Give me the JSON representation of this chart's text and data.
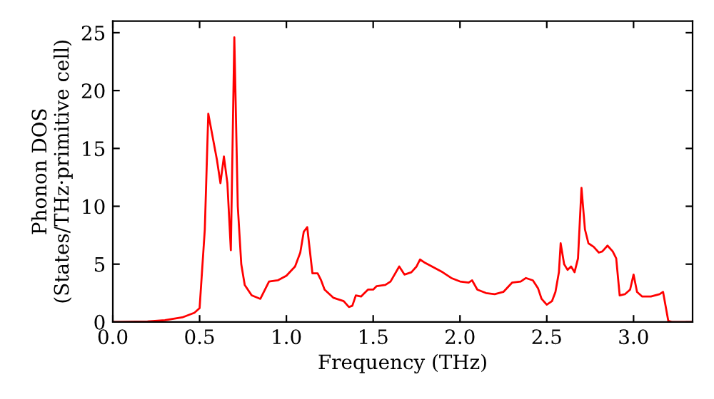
{
  "chart_data": {
    "type": "line",
    "xlabel": "Frequency (THz)",
    "ylabel": "Phonon DOS\n(States/THz·primitive cell)",
    "xlim": [
      0,
      3.34
    ],
    "ylim": [
      0,
      26
    ],
    "xticks": [
      {
        "value": 0,
        "label": "0.0"
      },
      {
        "value": 0.5,
        "label": "0.5"
      },
      {
        "value": 1,
        "label": "1.0"
      },
      {
        "value": 1.5,
        "label": "1.5"
      },
      {
        "value": 2,
        "label": "2.0"
      },
      {
        "value": 2.5,
        "label": "2.5"
      },
      {
        "value": 3,
        "label": "3.0"
      }
    ],
    "yticks": [
      0,
      5,
      10,
      15,
      20,
      25
    ],
    "grid": false,
    "marker": "none",
    "line_style": "solid",
    "series": [
      {
        "color": "#ff0000",
        "x": [
          0,
          0.2,
          0.3,
          0.4,
          0.47,
          0.5,
          0.53,
          0.55,
          0.6,
          0.62,
          0.64,
          0.66,
          0.68,
          0.7,
          0.72,
          0.74,
          0.76,
          0.8,
          0.85,
          0.9,
          0.95,
          1.0,
          1.05,
          1.08,
          1.1,
          1.12,
          1.15,
          1.18,
          1.2,
          1.22,
          1.27,
          1.33,
          1.36,
          1.38,
          1.4,
          1.43,
          1.47,
          1.5,
          1.52,
          1.57,
          1.6,
          1.65,
          1.68,
          1.72,
          1.75,
          1.77,
          1.8,
          1.85,
          1.9,
          1.95,
          2.0,
          2.05,
          2.07,
          2.1,
          2.15,
          2.2,
          2.25,
          2.3,
          2.35,
          2.38,
          2.42,
          2.45,
          2.47,
          2.5,
          2.53,
          2.55,
          2.57,
          2.58,
          2.6,
          2.62,
          2.64,
          2.66,
          2.68,
          2.7,
          2.72,
          2.74,
          2.77,
          2.8,
          2.82,
          2.85,
          2.88,
          2.9,
          2.92,
          2.95,
          2.98,
          3.0,
          3.02,
          3.05,
          3.1,
          3.15,
          3.17,
          3.2,
          3.22,
          3.34
        ],
        "values": [
          0,
          0.05,
          0.15,
          0.4,
          0.8,
          1.2,
          8,
          18,
          14,
          12,
          14.3,
          12,
          6.2,
          24.6,
          10,
          5,
          3.2,
          2.3,
          2,
          3.5,
          3.6,
          4,
          4.8,
          6,
          7.8,
          8.2,
          4.2,
          4.2,
          3.6,
          2.8,
          2.1,
          1.8,
          1.3,
          1.4,
          2.3,
          2.2,
          2.8,
          2.8,
          3.1,
          3.2,
          3.5,
          4.8,
          4.1,
          4.3,
          4.8,
          5.4,
          5.1,
          4.7,
          4.3,
          3.8,
          3.5,
          3.4,
          3.6,
          2.8,
          2.5,
          2.4,
          2.6,
          3.4,
          3.5,
          3.8,
          3.6,
          2.9,
          2,
          1.5,
          1.8,
          2.6,
          4.3,
          6.8,
          5,
          4.5,
          4.8,
          4.3,
          5.5,
          11.6,
          8,
          6.8,
          6.5,
          6,
          6.1,
          6.6,
          6.1,
          5.5,
          2.3,
          2.4,
          2.8,
          4.1,
          2.6,
          2.2,
          2.2,
          2.4,
          2.6,
          0.1,
          0,
          0
        ]
      }
    ]
  }
}
